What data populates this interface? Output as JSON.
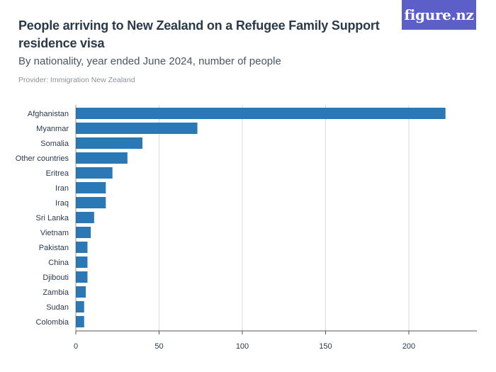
{
  "header": {
    "title": "People arriving to New Zealand on a Refugee Family Support residence visa",
    "subtitle": "By nationality, year ended June 2024, number of people",
    "provider": "Provider: Immigration New Zealand",
    "logo_text": "figure.nz"
  },
  "colors": {
    "bar": "#2a78b5",
    "grid": "#d9d9d9",
    "axis": "#555555",
    "label": "#2b3a4a",
    "logo_bg": "#5b5fc7"
  },
  "chart_data": {
    "type": "bar",
    "orientation": "horizontal",
    "title": "People arriving to New Zealand on a Refugee Family Support residence visa",
    "subtitle": "By nationality, year ended June 2024, number of people",
    "xlabel": "",
    "ylabel": "",
    "xlim": [
      0,
      240
    ],
    "xticks": [
      0,
      50,
      100,
      150,
      200
    ],
    "grid": true,
    "categories": [
      "Afghanistan",
      "Myanmar",
      "Somalia",
      "Other countries",
      "Eritrea",
      "Iran",
      "Iraq",
      "Sri Lanka",
      "Vietnam",
      "Pakistan",
      "China",
      "Djibouti",
      "Zambia",
      "Sudan",
      "Colombia"
    ],
    "values": [
      222,
      73,
      40,
      31,
      22,
      18,
      18,
      11,
      9,
      7,
      7,
      7,
      6,
      5,
      5
    ]
  }
}
